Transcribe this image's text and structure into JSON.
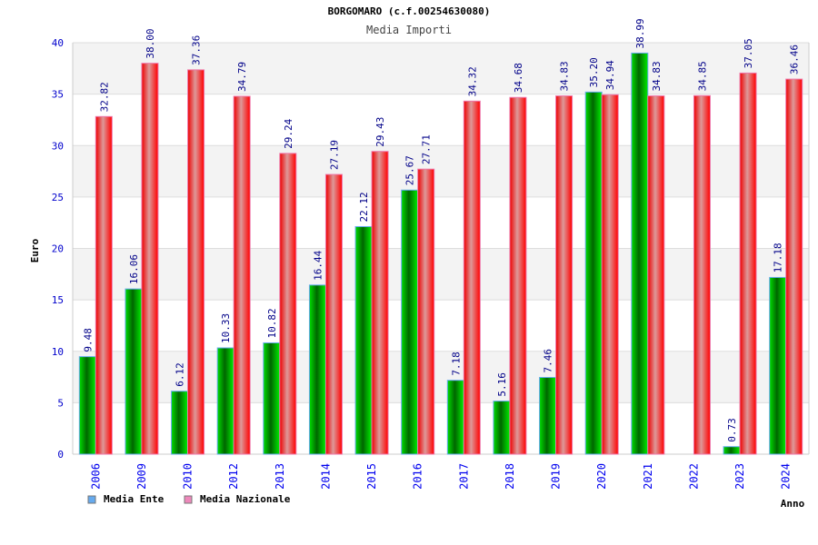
{
  "chart_data": {
    "type": "bar",
    "title": "BORGOMARO (c.f.00254630080)",
    "subtitle": "Media Importi",
    "xlabel": "Anno",
    "ylabel": "Euro",
    "ylim": [
      0,
      40
    ],
    "yticks": [
      0,
      5,
      10,
      15,
      20,
      25,
      30,
      35,
      40
    ],
    "grid": true,
    "legend_placement": "bottom-left",
    "categories": [
      "2006",
      "2009",
      "2010",
      "2012",
      "2013",
      "2014",
      "2015",
      "2016",
      "2017",
      "2018",
      "2019",
      "2020",
      "2021",
      "2022",
      "2023",
      "2024"
    ],
    "series": [
      {
        "name": "Media Ente",
        "color": "#00cc00",
        "legend_color": "#66aaee",
        "values": [
          9.48,
          16.06,
          6.12,
          10.33,
          10.82,
          16.44,
          22.12,
          25.67,
          7.18,
          5.16,
          7.46,
          35.2,
          38.99,
          null,
          0.73,
          17.18
        ],
        "labels": [
          "9.48",
          "16.06",
          "6.12",
          "10.33",
          "10.82",
          "16.44",
          "22.12",
          "25.67",
          "7.18",
          "5.16",
          "7.46",
          "35.20",
          "38.99",
          "",
          "0.73",
          "17.18"
        ]
      },
      {
        "name": "Media Nazionale",
        "color": "#ff0000",
        "legend_color": "#ee88bb",
        "values": [
          32.82,
          38.0,
          37.36,
          34.79,
          29.24,
          27.19,
          29.43,
          27.71,
          34.32,
          34.68,
          34.83,
          34.94,
          34.83,
          34.85,
          37.05,
          36.46
        ],
        "labels": [
          "32.82",
          "38.00",
          "37.36",
          "34.79",
          "29.24",
          "27.19",
          "29.43",
          "27.71",
          "34.32",
          "34.68",
          "34.83",
          "34.94",
          "34.83",
          "34.85",
          "37.05",
          "36.46"
        ]
      }
    ]
  }
}
